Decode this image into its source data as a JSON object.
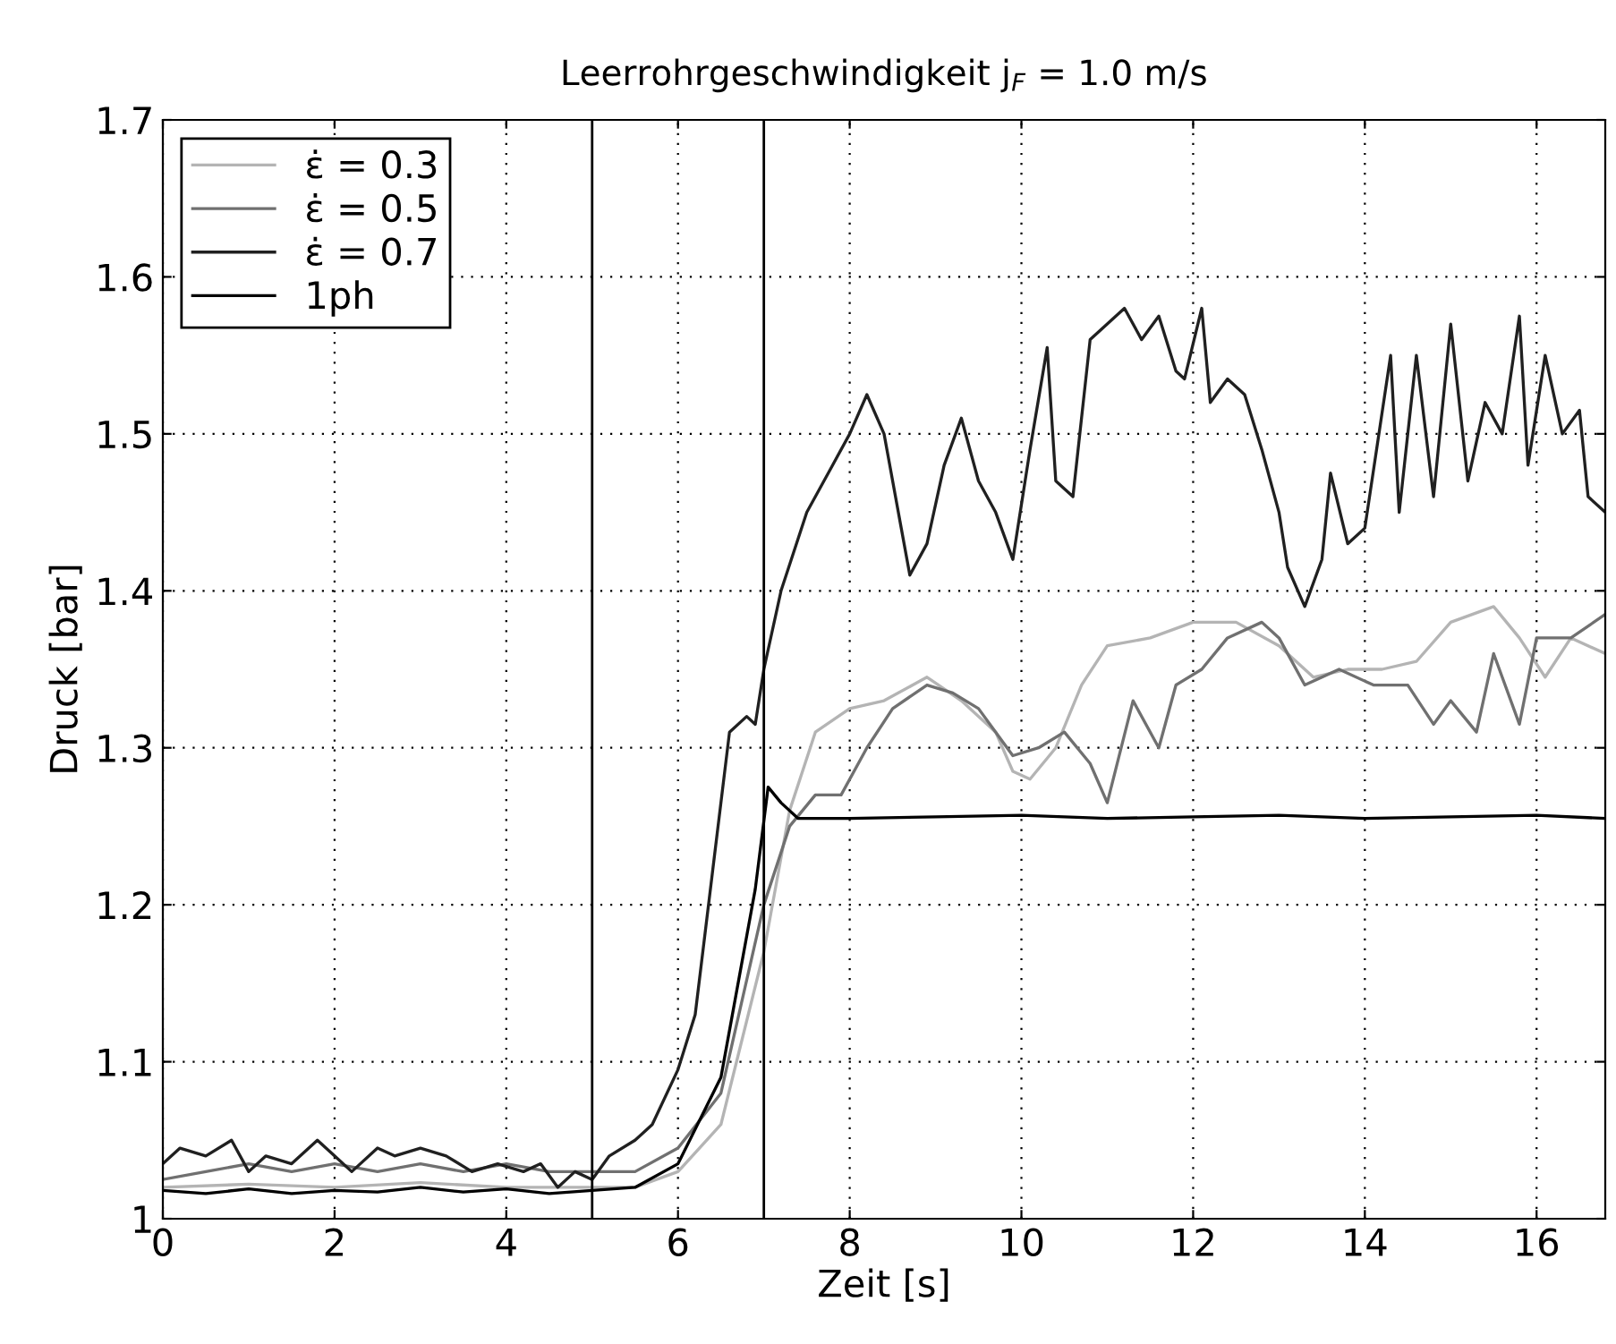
{
  "chart_data": {
    "type": "line",
    "title": "Leerrohrgeschwindigkeit j$_{F}$ = 1.0 m/s",
    "xlabel": "Zeit [s]",
    "ylabel": "Druck [bar]",
    "xlim": [
      0,
      16.8
    ],
    "xticks": [
      0,
      2,
      4,
      6,
      8,
      10,
      12,
      14,
      16
    ],
    "ylim": [
      1,
      1.7
    ],
    "yticks": [
      1,
      1.1,
      1.2,
      1.3,
      1.4,
      1.5,
      1.6,
      1.7
    ],
    "grid": true,
    "legend": "top left",
    "line_style": "solid",
    "marker": "none",
    "ref_lines": [
      {
        "axis": "x",
        "value": 5,
        "color": "#000000"
      },
      {
        "axis": "x",
        "value": 7,
        "color": "#000000"
      }
    ],
    "series": [
      {
        "name": "ε̇ = 0.3",
        "color": "#b4b4b4",
        "x": [
          0,
          1,
          2,
          3,
          4,
          5,
          5.5,
          6,
          6.5,
          7,
          7.3,
          7.6,
          8,
          8.4,
          8.9,
          9.3,
          9.7,
          9.9,
          10.1,
          10.4,
          10.7,
          11,
          11.5,
          12,
          12.5,
          13,
          13.4,
          13.8,
          14.2,
          14.6,
          15,
          15.5,
          15.8,
          16.1,
          16.4,
          16.8
        ],
        "values": [
          1.02,
          1.022,
          1.02,
          1.023,
          1.02,
          1.02,
          1.02,
          1.03,
          1.06,
          1.17,
          1.26,
          1.31,
          1.325,
          1.33,
          1.345,
          1.33,
          1.31,
          1.285,
          1.28,
          1.3,
          1.34,
          1.365,
          1.37,
          1.38,
          1.38,
          1.365,
          1.345,
          1.35,
          1.35,
          1.355,
          1.38,
          1.39,
          1.37,
          1.345,
          1.37,
          1.36
        ]
      },
      {
        "name": "ε̇ = 0.5",
        "color": "#707070",
        "x": [
          0,
          0.5,
          1,
          1.5,
          2,
          2.5,
          3,
          3.5,
          4,
          4.5,
          5,
          5.5,
          6,
          6.5,
          7,
          7.3,
          7.6,
          7.9,
          8.2,
          8.5,
          8.9,
          9.2,
          9.5,
          9.7,
          9.9,
          10.2,
          10.5,
          10.8,
          11,
          11.3,
          11.6,
          11.8,
          12.1,
          12.4,
          12.8,
          13,
          13.3,
          13.7,
          14.1,
          14.5,
          14.8,
          15,
          15.3,
          15.5,
          15.8,
          16,
          16.4,
          16.8
        ],
        "values": [
          1.025,
          1.03,
          1.035,
          1.03,
          1.035,
          1.03,
          1.035,
          1.03,
          1.035,
          1.03,
          1.03,
          1.03,
          1.045,
          1.08,
          1.2,
          1.25,
          1.27,
          1.27,
          1.3,
          1.325,
          1.34,
          1.335,
          1.325,
          1.31,
          1.295,
          1.3,
          1.31,
          1.29,
          1.265,
          1.33,
          1.3,
          1.34,
          1.35,
          1.37,
          1.38,
          1.37,
          1.34,
          1.35,
          1.34,
          1.34,
          1.315,
          1.33,
          1.31,
          1.36,
          1.315,
          1.37,
          1.37,
          1.385
        ]
      },
      {
        "name": "ε̇ = 0.7",
        "color": "#202020",
        "x": [
          0,
          0.2,
          0.5,
          0.8,
          1.0,
          1.2,
          1.5,
          1.8,
          2.0,
          2.2,
          2.5,
          2.7,
          3,
          3.3,
          3.6,
          3.9,
          4.2,
          4.4,
          4.6,
          4.8,
          5.0,
          5.2,
          5.5,
          5.7,
          6.0,
          6.2,
          6.4,
          6.6,
          6.8,
          6.9,
          7.0,
          7.2,
          7.5,
          7.8,
          8.0,
          8.2,
          8.4,
          8.6,
          8.7,
          8.9,
          9.1,
          9.3,
          9.5,
          9.7,
          9.9,
          10.1,
          10.3,
          10.4,
          10.6,
          10.8,
          11.0,
          11.2,
          11.4,
          11.6,
          11.8,
          11.9,
          12.1,
          12.2,
          12.4,
          12.6,
          12.8,
          13.0,
          13.1,
          13.3,
          13.5,
          13.6,
          13.8,
          14.0,
          14.3,
          14.4,
          14.6,
          14.8,
          15.0,
          15.2,
          15.4,
          15.6,
          15.8,
          15.9,
          16.1,
          16.3,
          16.5,
          16.6,
          16.8
        ],
        "values": [
          1.035,
          1.045,
          1.04,
          1.05,
          1.03,
          1.04,
          1.035,
          1.05,
          1.04,
          1.03,
          1.045,
          1.04,
          1.045,
          1.04,
          1.03,
          1.035,
          1.03,
          1.035,
          1.02,
          1.03,
          1.025,
          1.04,
          1.05,
          1.06,
          1.095,
          1.13,
          1.22,
          1.31,
          1.32,
          1.315,
          1.35,
          1.4,
          1.45,
          1.48,
          1.5,
          1.525,
          1.5,
          1.44,
          1.41,
          1.43,
          1.48,
          1.51,
          1.47,
          1.45,
          1.42,
          1.49,
          1.555,
          1.47,
          1.46,
          1.56,
          1.57,
          1.58,
          1.56,
          1.575,
          1.54,
          1.535,
          1.58,
          1.52,
          1.535,
          1.525,
          1.49,
          1.45,
          1.415,
          1.39,
          1.42,
          1.475,
          1.43,
          1.44,
          1.55,
          1.45,
          1.55,
          1.46,
          1.57,
          1.47,
          1.52,
          1.5,
          1.575,
          1.48,
          1.55,
          1.5,
          1.515,
          1.46,
          1.45
        ]
      },
      {
        "name": "1ph",
        "color": "#000000",
        "x": [
          0,
          0.5,
          1,
          1.5,
          2,
          2.5,
          3,
          3.5,
          4,
          4.5,
          5,
          5.5,
          6,
          6.5,
          6.9,
          7.05,
          7.2,
          7.4,
          8,
          9,
          10,
          11,
          12,
          13,
          14,
          15,
          16,
          16.8
        ],
        "values": [
          1.018,
          1.016,
          1.019,
          1.016,
          1.018,
          1.017,
          1.02,
          1.017,
          1.019,
          1.016,
          1.018,
          1.02,
          1.035,
          1.09,
          1.21,
          1.275,
          1.265,
          1.255,
          1.255,
          1.256,
          1.257,
          1.255,
          1.256,
          1.257,
          1.255,
          1.256,
          1.257,
          1.255
        ]
      }
    ]
  }
}
